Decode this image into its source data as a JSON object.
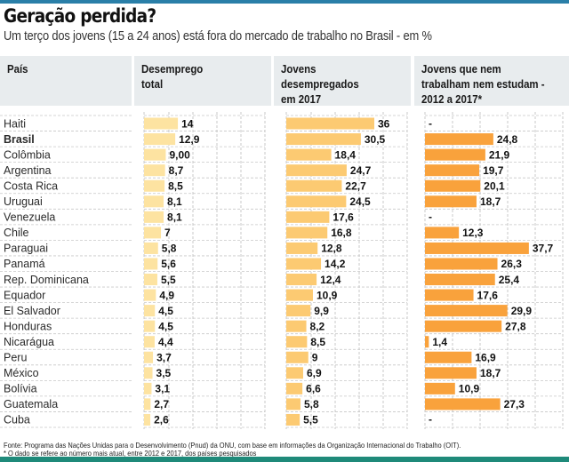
{
  "header": {
    "title": "Geração perdida?",
    "subtitle": "Um terço dos jovens (15 a 24 anos) está fora do mercado de trabalho no Brasil - em %"
  },
  "columns": {
    "country": "País",
    "total": "Desemprego\ntotal",
    "youth": "Jovens\ndesempregados\nem 2017",
    "neet": "Jovens que nem\ntrabalham nem estudam -\n2012 a 2017*"
  },
  "colors": {
    "top_rule": "#2a7fa8",
    "bottom_rule": "#1f8a7a",
    "header_bg": "#e8ecee",
    "bar_total": "#fde3a1",
    "bar_youth": "#fcca72",
    "bar_neet": "#f9a23c",
    "grid": "#c8c8c8"
  },
  "chart_data": {
    "type": "bar",
    "title": "Geração perdida?",
    "subtitle": "Um terço dos jovens (15 a 24 anos) está fora do mercado de trabalho no Brasil - em %",
    "orientation": "horizontal",
    "highlight_category": "Brasil",
    "categories": [
      "Haiti",
      "Brasil",
      "Colômbia",
      "Argentina",
      "Costa Rica",
      "Uruguai",
      "Venezuela",
      "Chile",
      "Paraguai",
      "Panamá",
      "Rep. Dominicana",
      "Equador",
      "El Salvador",
      "Honduras",
      "Nicarágua",
      "Peru",
      "México",
      "Bolívia",
      "Guatemala",
      "Cuba"
    ],
    "series": [
      {
        "name": "Desemprego total",
        "values": [
          14,
          12.9,
          9.0,
          8.7,
          8.5,
          8.1,
          8.1,
          7,
          5.8,
          5.6,
          5.5,
          4.9,
          4.5,
          4.5,
          4.4,
          3.7,
          3.5,
          3.1,
          2.7,
          2.6
        ],
        "labels": [
          "14",
          "12,9",
          "9,00",
          "8,7",
          "8,5",
          "8,1",
          "8,1",
          "7",
          "5,8",
          "5,6",
          "5,5",
          "4,9",
          "4,5",
          "4,5",
          "4,4",
          "3,7",
          "3,5",
          "3,1",
          "2,7",
          "2,6"
        ]
      },
      {
        "name": "Jovens desempregados em 2017",
        "values": [
          36,
          30.5,
          18.4,
          24.7,
          22.7,
          24.5,
          17.6,
          16.8,
          12.8,
          14.2,
          12.4,
          10.9,
          9.9,
          8.2,
          8.5,
          9,
          6.9,
          6.6,
          5.8,
          5.5
        ],
        "labels": [
          "36",
          "30,5",
          "18,4",
          "24,7",
          "22,7",
          "24,5",
          "17,6",
          "16,8",
          "12,8",
          "14,2",
          "12,4",
          "10,9",
          "9,9",
          "8,2",
          "8,5",
          "9",
          "6,9",
          "6,6",
          "5,8",
          "5,5"
        ]
      },
      {
        "name": "Jovens que nem trabalham nem estudam - 2012 a 2017*",
        "values": [
          null,
          24.8,
          21.9,
          19.7,
          20.1,
          18.7,
          null,
          12.3,
          37.7,
          26.3,
          25.4,
          17.6,
          29.9,
          27.8,
          1.4,
          16.9,
          18.7,
          10.9,
          27.3,
          null
        ],
        "labels": [
          "-",
          "24,8",
          "21,9",
          "19,7",
          "20,1",
          "18,7",
          "-",
          "12,3",
          "37,7",
          "26,3",
          "25,4",
          "17,6",
          "29,9",
          "27,8",
          "1,4",
          "16,9",
          "18,7",
          "10,9",
          "27,3",
          "-"
        ]
      }
    ],
    "xlabel": "",
    "ylabel": "",
    "grid": true,
    "legend": "none"
  },
  "footer": {
    "source": "Fonte: Programa das Nações Unidas para o Desenvolvimento (Pnud) da ONU, com base em informações da Organização Internacional do Trabalho (OIT).",
    "note": "* O dado se refere ao número mais atual, entre 2012 e 2017, dos países pesquisados"
  }
}
